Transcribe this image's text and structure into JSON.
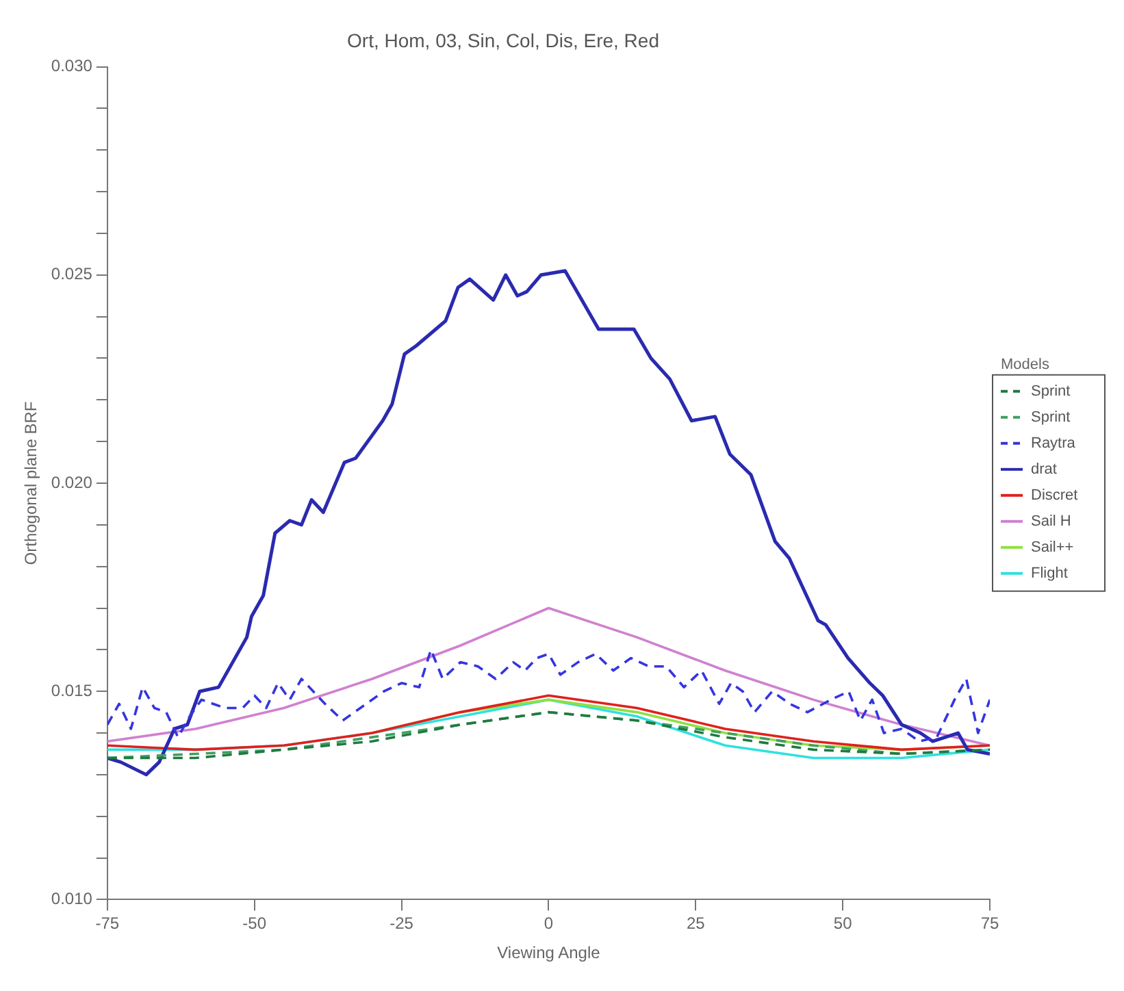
{
  "chart_data": {
    "type": "line",
    "title": "Ort, Hom, 03, Sin, Col, Dis, Ere, Red",
    "xlabel": "Viewing Angle",
    "ylabel": "Orthogonal plane BRF",
    "legend_title": "Models",
    "legend": "right",
    "xlim": [
      -75,
      75
    ],
    "xticks": [
      -75,
      -50,
      -25,
      0,
      25,
      50,
      75
    ],
    "ylim": [
      0.01,
      0.03
    ],
    "yticks": [
      {
        "value": 0.01,
        "label": "0.010"
      },
      {
        "value": 0.011,
        "label": null
      },
      {
        "value": 0.012,
        "label": null
      },
      {
        "value": 0.013,
        "label": null
      },
      {
        "value": 0.014,
        "label": null
      },
      {
        "value": 0.015,
        "label": "0.015"
      },
      {
        "value": 0.016,
        "label": null
      },
      {
        "value": 0.017,
        "label": null
      },
      {
        "value": 0.018,
        "label": null
      },
      {
        "value": 0.019,
        "label": null
      },
      {
        "value": 0.02,
        "label": "0.020"
      },
      {
        "value": 0.021,
        "label": null
      },
      {
        "value": 0.022,
        "label": null
      },
      {
        "value": 0.023,
        "label": null
      },
      {
        "value": 0.024,
        "label": null
      },
      {
        "value": 0.025,
        "label": "0.025"
      },
      {
        "value": 0.026,
        "label": null
      },
      {
        "value": 0.027,
        "label": null
      },
      {
        "value": 0.028,
        "label": null
      },
      {
        "value": 0.029,
        "label": null
      },
      {
        "value": 0.03,
        "label": "0.030"
      }
    ],
    "x": [
      -75,
      -60,
      -45,
      -30,
      -15,
      0,
      15,
      30,
      45,
      60,
      75
    ],
    "series": [
      {
        "name": "Sprint",
        "color": "#207a40",
        "line_style": "dashed",
        "values": [
          0.0134,
          0.0134,
          0.0136,
          0.0138,
          0.0142,
          0.0145,
          0.0143,
          0.0139,
          0.0136,
          0.0135,
          0.0136
        ]
      },
      {
        "name": "Sprint",
        "color": "#40a060",
        "line_style": "dashed",
        "values": [
          0.0134,
          0.0135,
          0.0136,
          0.0139,
          0.0142,
          0.0145,
          0.0143,
          0.014,
          0.0137,
          0.0135,
          0.0136
        ]
      },
      {
        "name": "Raytra",
        "color": "#3535e0",
        "line_style": "dashed",
        "x": [
          -75,
          -73,
          -71,
          -69,
          -67,
          -65,
          -63,
          -61,
          -59,
          -57,
          -55,
          -52,
          -50,
          -48,
          -46,
          -44,
          -42,
          -40,
          -38,
          -35,
          -32,
          -28,
          -25,
          -22,
          -20,
          -18,
          -15,
          -12,
          -9,
          -6,
          -4,
          -2,
          0,
          2,
          5,
          8,
          11,
          14,
          17,
          20,
          23,
          26,
          29,
          31,
          33,
          35,
          38,
          41,
          44,
          48,
          51,
          53,
          55,
          57,
          60,
          63,
          66,
          69,
          71,
          73,
          75
        ],
        "values": [
          0.0142,
          0.0147,
          0.0141,
          0.0151,
          0.0146,
          0.0145,
          0.0139,
          0.0144,
          0.0148,
          0.0147,
          0.0146,
          0.0146,
          0.0149,
          0.0146,
          0.0152,
          0.0148,
          0.0153,
          0.015,
          0.0147,
          0.0143,
          0.0146,
          0.015,
          0.0152,
          0.0151,
          0.016,
          0.0153,
          0.0157,
          0.0156,
          0.0153,
          0.0157,
          0.0155,
          0.0158,
          0.0159,
          0.0154,
          0.0157,
          0.0159,
          0.0155,
          0.0158,
          0.0156,
          0.0156,
          0.0151,
          0.0155,
          0.0147,
          0.0152,
          0.015,
          0.0145,
          0.015,
          0.0147,
          0.0145,
          0.0148,
          0.015,
          0.0143,
          0.0148,
          0.014,
          0.0141,
          0.0138,
          0.0139,
          0.0148,
          0.0153,
          0.014,
          0.0148
        ]
      },
      {
        "name": "drat",
        "color": "#2a2ab0",
        "line_style": "solid",
        "x": [
          -75,
          -72.7,
          -68.4,
          -66.2,
          -63.6,
          -61.4,
          -59.3,
          -56.1,
          -51.3,
          -50.5,
          -48.5,
          -46.5,
          -44,
          -42,
          -40.3,
          -38.3,
          -34.7,
          -32.8,
          -28.2,
          -26.6,
          -24.5,
          -22.5,
          -17.5,
          -15.4,
          -13.4,
          -9.4,
          -7.3,
          -5.3,
          -3.7,
          -1.3,
          2.8,
          8.5,
          14.5,
          17.4,
          20.6,
          24.3,
          28.3,
          30.8,
          34.4,
          38.5,
          40.9,
          45.8,
          47.1,
          50.9,
          54.6,
          56.8,
          60,
          63.2,
          65.3,
          69.6,
          71.2,
          75
        ],
        "values": [
          0.0134,
          0.0133,
          0.013,
          0.0133,
          0.0141,
          0.0142,
          0.015,
          0.0151,
          0.0163,
          0.0168,
          0.0173,
          0.0188,
          0.0191,
          0.019,
          0.0196,
          0.0193,
          0.0205,
          0.0206,
          0.0215,
          0.0219,
          0.0231,
          0.0233,
          0.0239,
          0.0247,
          0.0249,
          0.0244,
          0.025,
          0.0245,
          0.0246,
          0.025,
          0.0251,
          0.0237,
          0.0237,
          0.023,
          0.0225,
          0.0215,
          0.0216,
          0.0207,
          0.0202,
          0.0186,
          0.0182,
          0.0167,
          0.0166,
          0.0158,
          0.0152,
          0.0149,
          0.0142,
          0.014,
          0.0138,
          0.014,
          0.0136,
          0.0135
        ]
      },
      {
        "name": "Discret",
        "color": "#e02020",
        "line_style": "solid",
        "values": [
          0.0137,
          0.0136,
          0.0137,
          0.014,
          0.0145,
          0.0149,
          0.0146,
          0.0141,
          0.0138,
          0.0136,
          0.0137
        ]
      },
      {
        "name": "Sail H",
        "color": "#d080d0",
        "line_style": "solid",
        "values": [
          0.0138,
          0.0141,
          0.0146,
          0.0153,
          0.0161,
          0.017,
          0.0163,
          0.0155,
          0.0148,
          0.0142,
          0.0137
        ]
      },
      {
        "name": "Sail++",
        "color": "#90e040",
        "line_style": "solid",
        "values": [
          null,
          null,
          null,
          0.014,
          0.0145,
          0.0148,
          0.0145,
          0.014,
          0.0137,
          0.0136,
          0.0137
        ]
      },
      {
        "name": "Flight",
        "color": "#30e0e0",
        "line_style": "solid",
        "values": [
          0.0136,
          0.0136,
          0.0137,
          0.014,
          0.0144,
          0.0148,
          0.0144,
          0.0137,
          0.0134,
          0.0134,
          0.0136
        ]
      }
    ]
  }
}
